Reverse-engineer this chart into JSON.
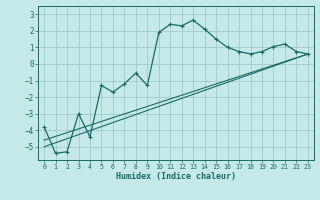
{
  "xlabel": "Humidex (Indice chaleur)",
  "xlim": [
    -0.5,
    23.5
  ],
  "ylim": [
    -5.8,
    3.5
  ],
  "yticks": [
    -5,
    -4,
    -3,
    -2,
    -1,
    0,
    1,
    2,
    3
  ],
  "xticks": [
    0,
    1,
    2,
    3,
    4,
    5,
    6,
    7,
    8,
    9,
    10,
    11,
    12,
    13,
    14,
    15,
    16,
    17,
    18,
    19,
    20,
    21,
    22,
    23
  ],
  "bg_color": "#c5e8e8",
  "grid_color": "#a0cccc",
  "line_color": "#1a6b6b",
  "line1_x": [
    0,
    1,
    2,
    3,
    4,
    5,
    6,
    7,
    8,
    9,
    10,
    11,
    12,
    13,
    14,
    15,
    16,
    17,
    18,
    19,
    20,
    21,
    22,
    23
  ],
  "line1_y": [
    -3.8,
    -5.4,
    -5.3,
    -3.0,
    -4.4,
    -1.3,
    -1.7,
    -1.2,
    -0.55,
    -1.3,
    1.9,
    2.4,
    2.3,
    2.65,
    2.1,
    1.5,
    1.0,
    0.75,
    0.6,
    0.75,
    1.05,
    1.2,
    0.75,
    0.6
  ],
  "line2_x": [
    0,
    23
  ],
  "line2_y": [
    -5.0,
    0.6
  ],
  "line3_x": [
    0,
    23
  ],
  "line3_y": [
    -4.6,
    0.6
  ]
}
